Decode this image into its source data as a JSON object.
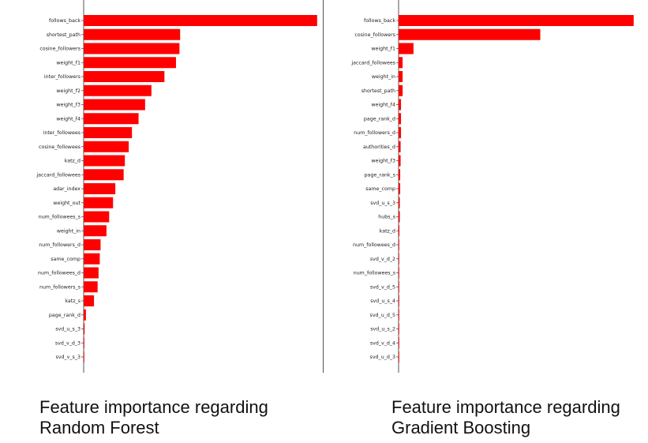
{
  "bar_color": "#ff0000",
  "axis_color": "#555555",
  "chart_data": [
    {
      "type": "bar",
      "orientation": "horizontal",
      "caption_line1": "Feature importance regarding",
      "caption_line2": "Random Forest",
      "categories": [
        "follows_back",
        "shortest_path",
        "cosine_followers",
        "weight_f1",
        "inter_followers",
        "weight_f2",
        "weight_f3",
        "weight_f4",
        "inter_followees",
        "cosine_followees",
        "katz_d",
        "jaccard_followees",
        "adar_index",
        "weight_out",
        "num_followees_s",
        "weight_in",
        "num_followers_d",
        "same_comp",
        "num_followees_d",
        "num_followers_s",
        "katz_s",
        "page_rank_d",
        "svd_u_s_3",
        "svd_v_d_3",
        "svd_v_s_3"
      ],
      "values": [
        0.174,
        0.0719,
        0.0714,
        0.0688,
        0.0602,
        0.0505,
        0.0458,
        0.0409,
        0.036,
        0.0336,
        0.0307,
        0.0298,
        0.0236,
        0.0219,
        0.019,
        0.017,
        0.0126,
        0.012,
        0.0111,
        0.0104,
        0.0077,
        0.0017,
        0.0007,
        0.0005,
        0.0004
      ],
      "xlim": [
        0,
        0.18
      ]
    },
    {
      "type": "bar",
      "orientation": "horizontal",
      "caption_line1": "Feature importance regarding",
      "caption_line2": "Gradient Boosting",
      "categories": [
        "follows_back",
        "cosine_followers",
        "weight_f1",
        "jaccard_followees",
        "weight_in",
        "shortest_path",
        "weight_f4",
        "page_rank_d",
        "num_followers_d",
        "authorities_d",
        "weight_f3",
        "page_rank_s",
        "same_comp",
        "svd_u_s_3",
        "hubs_s",
        "katz_d",
        "num_followees_d",
        "svd_v_d_2",
        "num_followees_s",
        "svd_v_d_5",
        "svd_u_s_4",
        "svd_u_d_5",
        "svd_u_s_2",
        "svd_v_d_4",
        "svd_u_d_3"
      ],
      "values": [
        0.584,
        0.352,
        0.037,
        0.01,
        0.01,
        0.01,
        0.006,
        0.006,
        0.006,
        0.005,
        0.005,
        0.004,
        0.004,
        0.003,
        0.003,
        0.002,
        0.001,
        0.001,
        0.001,
        0.001,
        0.001,
        0.001,
        0.001,
        0.001,
        0.001
      ],
      "xlim": [
        0,
        0.6
      ]
    }
  ]
}
